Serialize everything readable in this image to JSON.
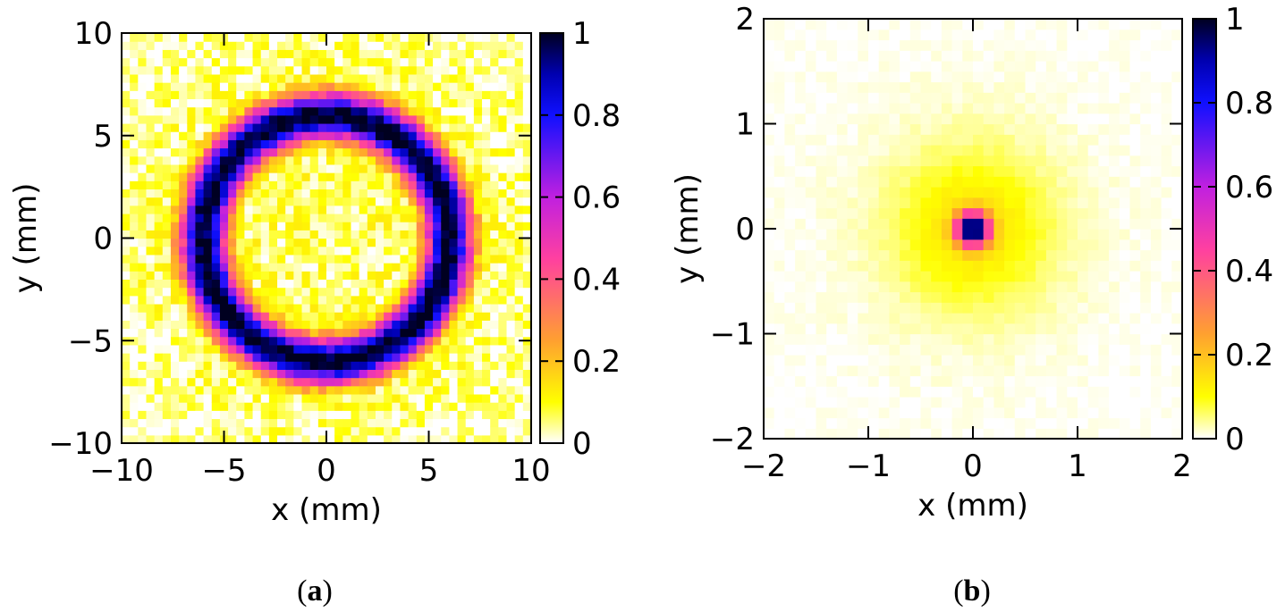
{
  "chart_data": [
    {
      "type": "heatmap",
      "panel_label": "(a)",
      "panel_letter": "a",
      "xlabel": "x (mm)",
      "ylabel": "y (mm)",
      "xlim": [
        -10,
        10
      ],
      "ylim": [
        -10,
        10
      ],
      "xticks": [
        -10,
        -5,
        0,
        5,
        10
      ],
      "yticks": [
        -10,
        -5,
        0,
        5,
        10
      ],
      "xtick_labels": [
        "−10",
        "−5",
        "0",
        "5",
        "10"
      ],
      "ytick_labels": [
        "−10",
        "−5",
        "0",
        "5",
        "10"
      ],
      "bins": 50,
      "pattern": {
        "shape": "ring",
        "center": [
          0,
          0
        ],
        "ring_radius_mm": 6,
        "ring_width_mm": 0.8,
        "ring_peak": 1.0,
        "inner_level": 0.06,
        "outer_level": 0.07,
        "noise": 0.07
      },
      "colorbar": {
        "range": [
          0,
          1
        ],
        "ticks": [
          0,
          0.2,
          0.4,
          0.6,
          0.8,
          1
        ],
        "tick_labels": [
          "0",
          "0.2",
          "0.4",
          "0.6",
          "0.8",
          "1"
        ],
        "colormap": "white-yellow-orange-magenta-blue-black"
      },
      "grid": false
    },
    {
      "type": "heatmap",
      "panel_label": "(b)",
      "panel_letter": "b",
      "xlabel": "x (mm)",
      "ylabel": "y (mm)",
      "xlim": [
        -2,
        2
      ],
      "ylim": [
        -2,
        2
      ],
      "xticks": [
        -2,
        -1,
        0,
        1,
        2
      ],
      "yticks": [
        -2,
        -1,
        0,
        1,
        2
      ],
      "xtick_labels": [
        "−2",
        "−1",
        "0",
        "1",
        "2"
      ],
      "ytick_labels": [
        "−2",
        "−1",
        "0",
        "1",
        "2"
      ],
      "bins": 40,
      "pattern": {
        "shape": "central-peak",
        "center": [
          0,
          0
        ],
        "peak": 1.0,
        "core_sigma_mm": 0.1,
        "halo_sigma_mm": 0.5,
        "halo_level": 0.13,
        "noise": 0.01
      },
      "colorbar": {
        "range": [
          0,
          1
        ],
        "ticks": [
          0,
          0.2,
          0.4,
          0.6,
          0.8,
          1
        ],
        "tick_labels": [
          "0",
          "0.2",
          "0.4",
          "0.6",
          "0.8",
          "1"
        ],
        "colormap": "white-yellow-orange-magenta-blue-black"
      },
      "grid": false
    }
  ],
  "colormap_stops": [
    {
      "v": 0.0,
      "color": "#ffffff"
    },
    {
      "v": 0.1,
      "color": "#ffff00"
    },
    {
      "v": 0.25,
      "color": "#ffa030"
    },
    {
      "v": 0.45,
      "color": "#ff40a0"
    },
    {
      "v": 0.6,
      "color": "#c020e0"
    },
    {
      "v": 0.8,
      "color": "#1010ff"
    },
    {
      "v": 0.9,
      "color": "#0000b0"
    },
    {
      "v": 1.0,
      "color": "#000020"
    }
  ]
}
